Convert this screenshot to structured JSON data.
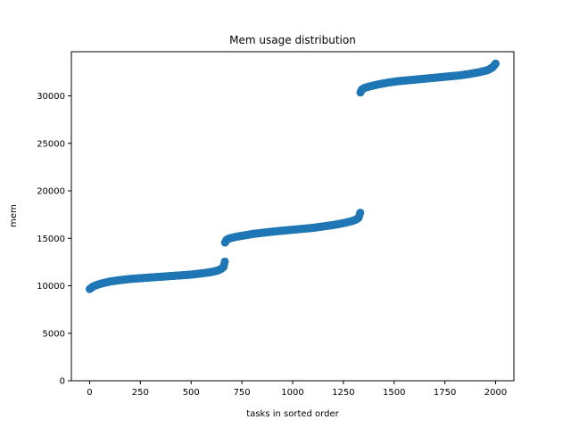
{
  "chart_data": {
    "type": "scatter",
    "title": "Mem usage distribution",
    "xlabel": "tasks in sorted order",
    "ylabel": "mem",
    "xlim": [
      -90,
      2090
    ],
    "ylim": [
      0,
      34650
    ],
    "xticks": [
      0,
      250,
      500,
      750,
      1000,
      1250,
      1500,
      1750,
      2000
    ],
    "yticks": [
      0,
      5000,
      10000,
      15000,
      20000,
      25000,
      30000
    ],
    "marker_color": "#1f77b4",
    "grid": false,
    "series": [
      {
        "points": [
          [
            0,
            9650
          ],
          [
            15,
            9900
          ],
          [
            30,
            10050
          ],
          [
            60,
            10250
          ],
          [
            100,
            10450
          ],
          [
            150,
            10600
          ],
          [
            200,
            10720
          ],
          [
            250,
            10800
          ],
          [
            300,
            10880
          ],
          [
            350,
            10950
          ],
          [
            400,
            11030
          ],
          [
            450,
            11100
          ],
          [
            500,
            11180
          ],
          [
            550,
            11300
          ],
          [
            600,
            11450
          ],
          [
            630,
            11600
          ],
          [
            650,
            11800
          ],
          [
            660,
            12000
          ],
          [
            666,
            12550
          ],
          [
            667,
            14550
          ],
          [
            675,
            14850
          ],
          [
            690,
            15000
          ],
          [
            720,
            15150
          ],
          [
            760,
            15300
          ],
          [
            800,
            15450
          ],
          [
            850,
            15580
          ],
          [
            900,
            15700
          ],
          [
            950,
            15800
          ],
          [
            1000,
            15900
          ],
          [
            1050,
            16000
          ],
          [
            1100,
            16100
          ],
          [
            1150,
            16250
          ],
          [
            1200,
            16400
          ],
          [
            1250,
            16600
          ],
          [
            1290,
            16800
          ],
          [
            1310,
            16950
          ],
          [
            1325,
            17150
          ],
          [
            1333,
            17700
          ],
          [
            1334,
            30350
          ],
          [
            1340,
            30650
          ],
          [
            1355,
            30850
          ],
          [
            1380,
            31000
          ],
          [
            1420,
            31200
          ],
          [
            1470,
            31400
          ],
          [
            1520,
            31550
          ],
          [
            1570,
            31650
          ],
          [
            1620,
            31750
          ],
          [
            1670,
            31850
          ],
          [
            1720,
            31950
          ],
          [
            1770,
            32050
          ],
          [
            1820,
            32150
          ],
          [
            1870,
            32300
          ],
          [
            1920,
            32500
          ],
          [
            1960,
            32700
          ],
          [
            1985,
            33000
          ],
          [
            2000,
            33400
          ]
        ]
      }
    ]
  }
}
